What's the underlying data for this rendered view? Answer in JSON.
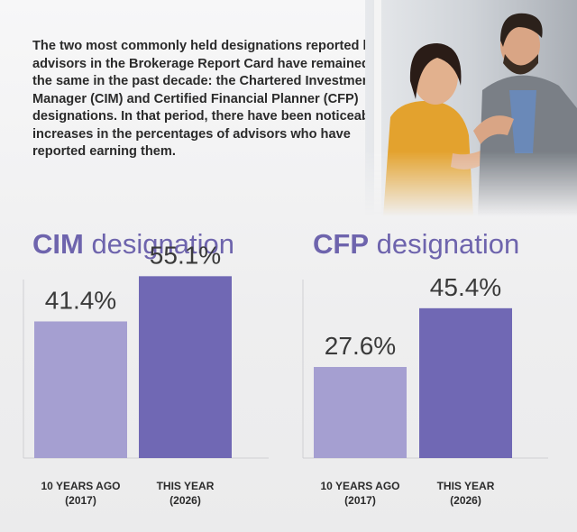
{
  "intro_text": "The two most commonly held designations reported by advisors in the Brokerage Report Card have remained the same in the past decade: the Chartered Investment Manager (CIM) and Certified Financial Planner (CFP) designations. In that period, there have been noticeable increases in the percentages of advisors who have reported earning them.",
  "chart_data": [
    {
      "type": "bar",
      "title_abbr": "CIM",
      "title_rest": " designation",
      "categories": [
        [
          "10 YEARS AGO",
          "(2017)"
        ],
        [
          "THIS YEAR",
          "(2026)"
        ]
      ],
      "values": [
        41.4,
        55.1
      ],
      "value_labels": [
        "41.4%",
        "55.1%"
      ],
      "colors": [
        "#a59fd1",
        "#7068b4"
      ],
      "ylim": [
        0,
        70
      ]
    },
    {
      "type": "bar",
      "title_abbr": "CFP",
      "title_rest": " designation",
      "categories": [
        [
          "10 YEARS AGO",
          "(2017)"
        ],
        [
          "THIS YEAR",
          "(2026)"
        ]
      ],
      "values": [
        27.6,
        45.4
      ],
      "value_labels": [
        "27.6%",
        "45.4%"
      ],
      "colors": [
        "#a59fd1",
        "#7068b4"
      ],
      "ylim": [
        0,
        70
      ]
    }
  ]
}
